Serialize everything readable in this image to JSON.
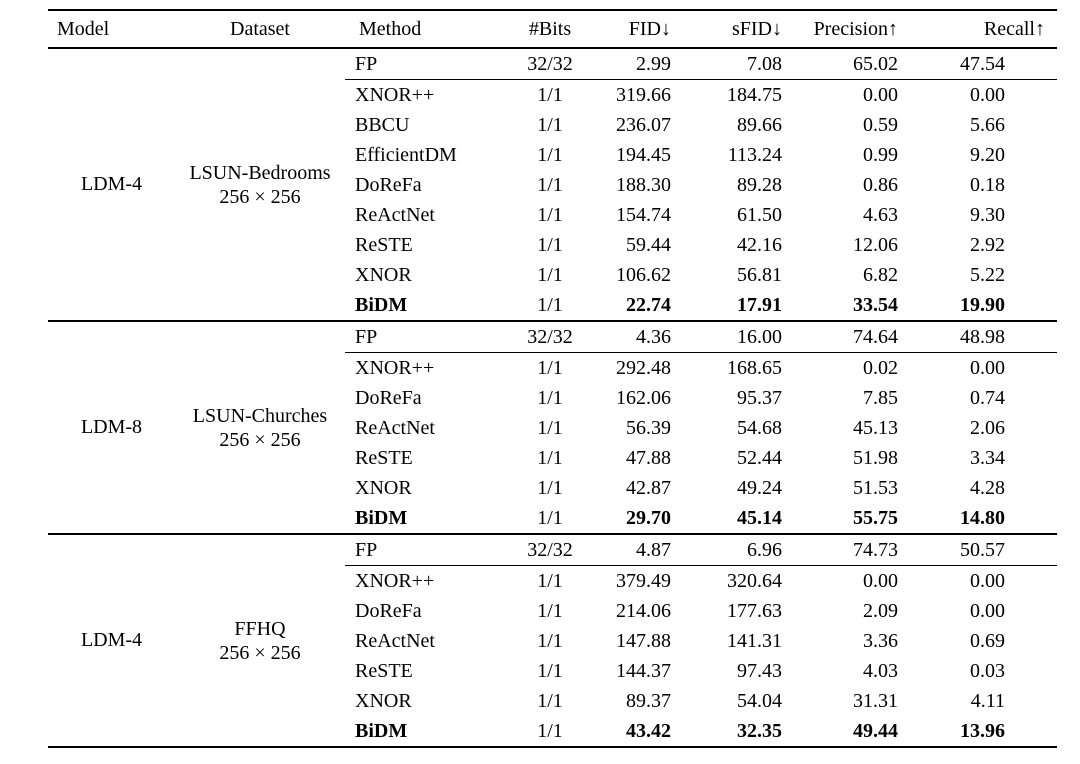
{
  "page": {
    "background": "#ffffff",
    "text_color": "#000000"
  },
  "table": {
    "columns": [
      {
        "key": "model",
        "label": "Model"
      },
      {
        "key": "dataset",
        "label": "Dataset"
      },
      {
        "key": "method",
        "label": "Method"
      },
      {
        "key": "bits",
        "label": "#Bits"
      },
      {
        "key": "fid",
        "label": "FID↓"
      },
      {
        "key": "sfid",
        "label": "sFID↓"
      },
      {
        "key": "precision",
        "label": "Precision↑"
      },
      {
        "key": "recall",
        "label": "Recall↑"
      }
    ],
    "groups": [
      {
        "model": "LDM-4",
        "dataset": {
          "name": "LSUN-Bedrooms",
          "resolution": "256 × 256"
        },
        "rows": [
          {
            "method": "FP",
            "bits": "32/32",
            "fid": "2.99",
            "sfid": "7.08",
            "precision": "65.02",
            "recall": "47.54",
            "bold": false
          },
          {
            "method": "XNOR++",
            "bits": "1/1",
            "fid": "319.66",
            "sfid": "184.75",
            "precision": "0.00",
            "recall": "0.00",
            "bold": false
          },
          {
            "method": "BBCU",
            "bits": "1/1",
            "fid": "236.07",
            "sfid": "89.66",
            "precision": "0.59",
            "recall": "5.66",
            "bold": false
          },
          {
            "method": "EfficientDM",
            "bits": "1/1",
            "fid": "194.45",
            "sfid": "113.24",
            "precision": "0.99",
            "recall": "9.20",
            "bold": false
          },
          {
            "method": "DoReFa",
            "bits": "1/1",
            "fid": "188.30",
            "sfid": "89.28",
            "precision": "0.86",
            "recall": "0.18",
            "bold": false
          },
          {
            "method": "ReActNet",
            "bits": "1/1",
            "fid": "154.74",
            "sfid": "61.50",
            "precision": "4.63",
            "recall": "9.30",
            "bold": false
          },
          {
            "method": "ReSTE",
            "bits": "1/1",
            "fid": "59.44",
            "sfid": "42.16",
            "precision": "12.06",
            "recall": "2.92",
            "bold": false
          },
          {
            "method": "XNOR",
            "bits": "1/1",
            "fid": "106.62",
            "sfid": "56.81",
            "precision": "6.82",
            "recall": "5.22",
            "bold": false
          },
          {
            "method": "BiDM",
            "bits": "1/1",
            "fid": "22.74",
            "sfid": "17.91",
            "precision": "33.54",
            "recall": "19.90",
            "bold": true
          }
        ]
      },
      {
        "model": "LDM-8",
        "dataset": {
          "name": "LSUN-Churches",
          "resolution": "256 × 256"
        },
        "rows": [
          {
            "method": "FP",
            "bits": "32/32",
            "fid": "4.36",
            "sfid": "16.00",
            "precision": "74.64",
            "recall": "48.98",
            "bold": false
          },
          {
            "method": "XNOR++",
            "bits": "1/1",
            "fid": "292.48",
            "sfid": "168.65",
            "precision": "0.02",
            "recall": "0.00",
            "bold": false
          },
          {
            "method": "DoReFa",
            "bits": "1/1",
            "fid": "162.06",
            "sfid": "95.37",
            "precision": "7.85",
            "recall": "0.74",
            "bold": false
          },
          {
            "method": "ReActNet",
            "bits": "1/1",
            "fid": "56.39",
            "sfid": "54.68",
            "precision": "45.13",
            "recall": "2.06",
            "bold": false
          },
          {
            "method": "ReSTE",
            "bits": "1/1",
            "fid": "47.88",
            "sfid": "52.44",
            "precision": "51.98",
            "recall": "3.34",
            "bold": false
          },
          {
            "method": "XNOR",
            "bits": "1/1",
            "fid": "42.87",
            "sfid": "49.24",
            "precision": "51.53",
            "recall": "4.28",
            "bold": false
          },
          {
            "method": "BiDM",
            "bits": "1/1",
            "fid": "29.70",
            "sfid": "45.14",
            "precision": "55.75",
            "recall": "14.80",
            "bold": true
          }
        ]
      },
      {
        "model": "LDM-4",
        "dataset": {
          "name": "FFHQ",
          "resolution": "256 × 256"
        },
        "rows": [
          {
            "method": "FP",
            "bits": "32/32",
            "fid": "4.87",
            "sfid": "6.96",
            "precision": "74.73",
            "recall": "50.57",
            "bold": false
          },
          {
            "method": "XNOR++",
            "bits": "1/1",
            "fid": "379.49",
            "sfid": "320.64",
            "precision": "0.00",
            "recall": "0.00",
            "bold": false
          },
          {
            "method": "DoReFa",
            "bits": "1/1",
            "fid": "214.06",
            "sfid": "177.63",
            "precision": "2.09",
            "recall": "0.00",
            "bold": false
          },
          {
            "method": "ReActNet",
            "bits": "1/1",
            "fid": "147.88",
            "sfid": "141.31",
            "precision": "3.36",
            "recall": "0.69",
            "bold": false
          },
          {
            "method": "ReSTE",
            "bits": "1/1",
            "fid": "144.37",
            "sfid": "97.43",
            "precision": "4.03",
            "recall": "0.03",
            "bold": false
          },
          {
            "method": "XNOR",
            "bits": "1/1",
            "fid": "89.37",
            "sfid": "54.04",
            "precision": "31.31",
            "recall": "4.11",
            "bold": false
          },
          {
            "method": "BiDM",
            "bits": "1/1",
            "fid": "43.42",
            "sfid": "32.35",
            "precision": "49.44",
            "recall": "13.96",
            "bold": true
          }
        ]
      }
    ]
  }
}
